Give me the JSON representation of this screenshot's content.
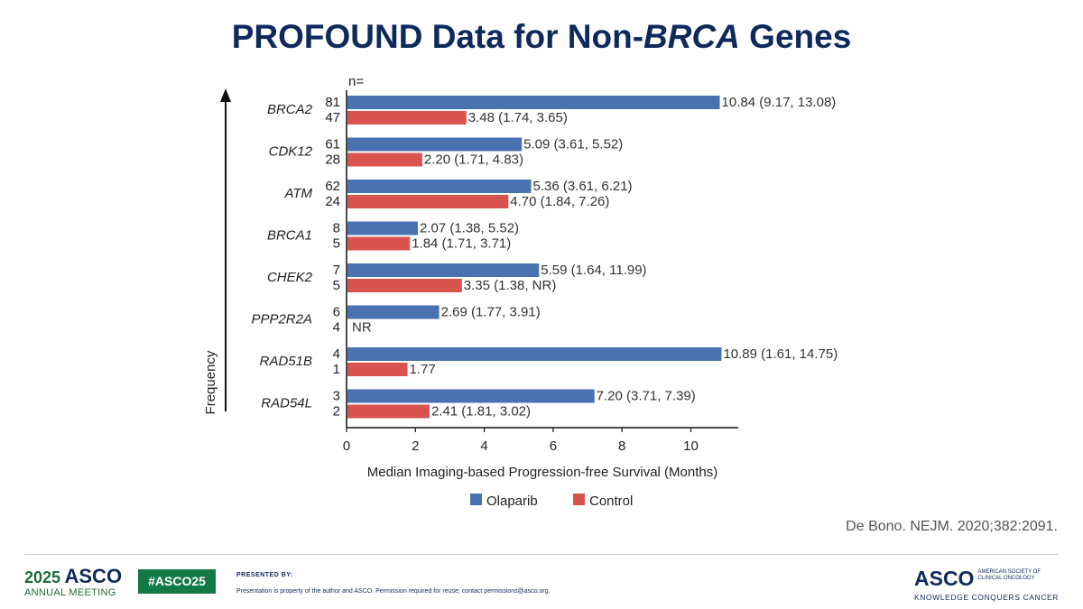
{
  "slide": {
    "title_prefix": "PROFOUND Data for Non-",
    "title_italic": "BRCA",
    "title_suffix": " Genes",
    "citation": "De Bono. NEJM. 2020;382:2091."
  },
  "footer": {
    "year": "2025",
    "asco": "ASCO",
    "annual_meeting": "ANNUAL MEETING",
    "hashtag": "#ASCO25",
    "presented_by": "PRESENTED BY:",
    "disclaimer": "Presentation is property of the author and ASCO. Permission required for reuse; contact permissions@asco.org.",
    "org_name": "ASCO",
    "org_sub_1": "AMERICAN SOCIETY OF",
    "org_sub_2": "CLINICAL ONCOLOGY",
    "org_tagline": "KNOWLEDGE CONQUERS CANCER"
  },
  "chart_data": {
    "type": "bar",
    "orientation": "horizontal",
    "n_header": "n=",
    "ylabel": "Frequency",
    "xlabel": "Median Imaging-based Progression-free Survival (Months)",
    "xlim": [
      0,
      11.3
    ],
    "xticks": [
      0,
      2,
      4,
      6,
      8,
      10
    ],
    "legend_position": "bottom",
    "colors": {
      "Olaparib": "#4a72b0",
      "Control": "#d9534f"
    },
    "categories": [
      "BRCA2",
      "CDK12",
      "ATM",
      "BRCA1",
      "CHEK2",
      "PPP2R2A",
      "RAD51B",
      "RAD54L"
    ],
    "series": [
      {
        "name": "Olaparib",
        "n": [
          "81",
          "61",
          "62",
          "8",
          "7",
          "6",
          "4",
          "3"
        ],
        "values": [
          10.84,
          5.09,
          5.36,
          2.07,
          5.59,
          2.69,
          10.89,
          7.2
        ],
        "labels": [
          "10.84 (9.17, 13.08)",
          "5.09 (3.61, 5.52)",
          "5.36 (3.61, 6.21)",
          "2.07 (1.38, 5.52)",
          "5.59 (1.64, 11.99)",
          "2.69 (1.77, 3.91)",
          "10.89 (1.61, 14.75)",
          "7.20 (3.71, 7.39)"
        ]
      },
      {
        "name": "Control",
        "n": [
          "47",
          "28",
          "24",
          "5",
          "5",
          "4",
          "1",
          "2"
        ],
        "values": [
          3.48,
          2.2,
          4.7,
          1.84,
          3.35,
          null,
          1.77,
          2.41
        ],
        "labels": [
          "3.48 (1.74, 3.65)",
          "2.20 (1.71, 4.83)",
          "4.70 (1.84, 7.26)",
          "1.84 (1.71, 3.71)",
          "3.35 (1.38, NR)",
          "NR",
          "1.77",
          "2.41 (1.81, 3.02)"
        ]
      }
    ]
  }
}
